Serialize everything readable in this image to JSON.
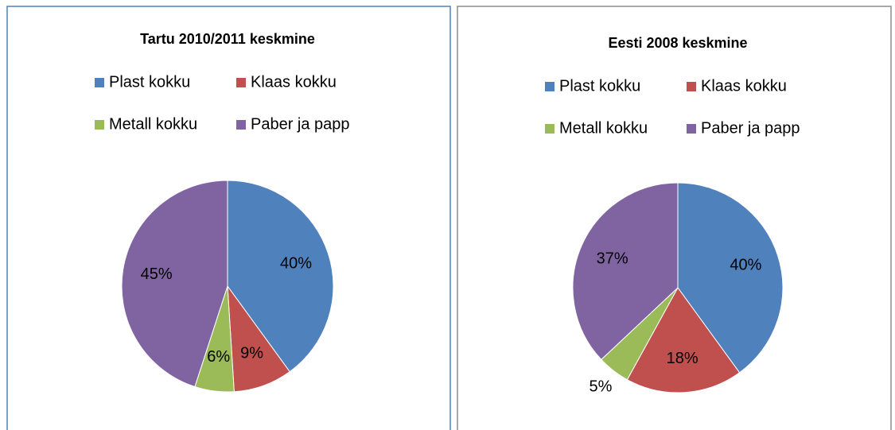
{
  "chart_data": [
    {
      "type": "pie",
      "title": "Tartu 2010/2011 keskmine",
      "categories": [
        "Plast kokku",
        "Klaas kokku",
        "Metall kokku",
        "Paber ja papp"
      ],
      "values": [
        40,
        9,
        6,
        45
      ],
      "value_labels": [
        "40%",
        "9%",
        "6%",
        "45%"
      ],
      "colors": [
        "#4f81bd",
        "#c0504d",
        "#9bbb59",
        "#8064a2"
      ],
      "legend": "top"
    },
    {
      "type": "pie",
      "title": "Eesti 2008 keskmine",
      "categories": [
        "Plast kokku",
        "Klaas kokku",
        "Metall kokku",
        "Paber ja papp"
      ],
      "values": [
        40,
        18,
        5,
        37
      ],
      "value_labels": [
        "40%",
        "18%",
        "5%",
        "37%"
      ],
      "colors": [
        "#4f81bd",
        "#c0504d",
        "#9bbb59",
        "#8064a2"
      ],
      "legend": "top"
    }
  ]
}
